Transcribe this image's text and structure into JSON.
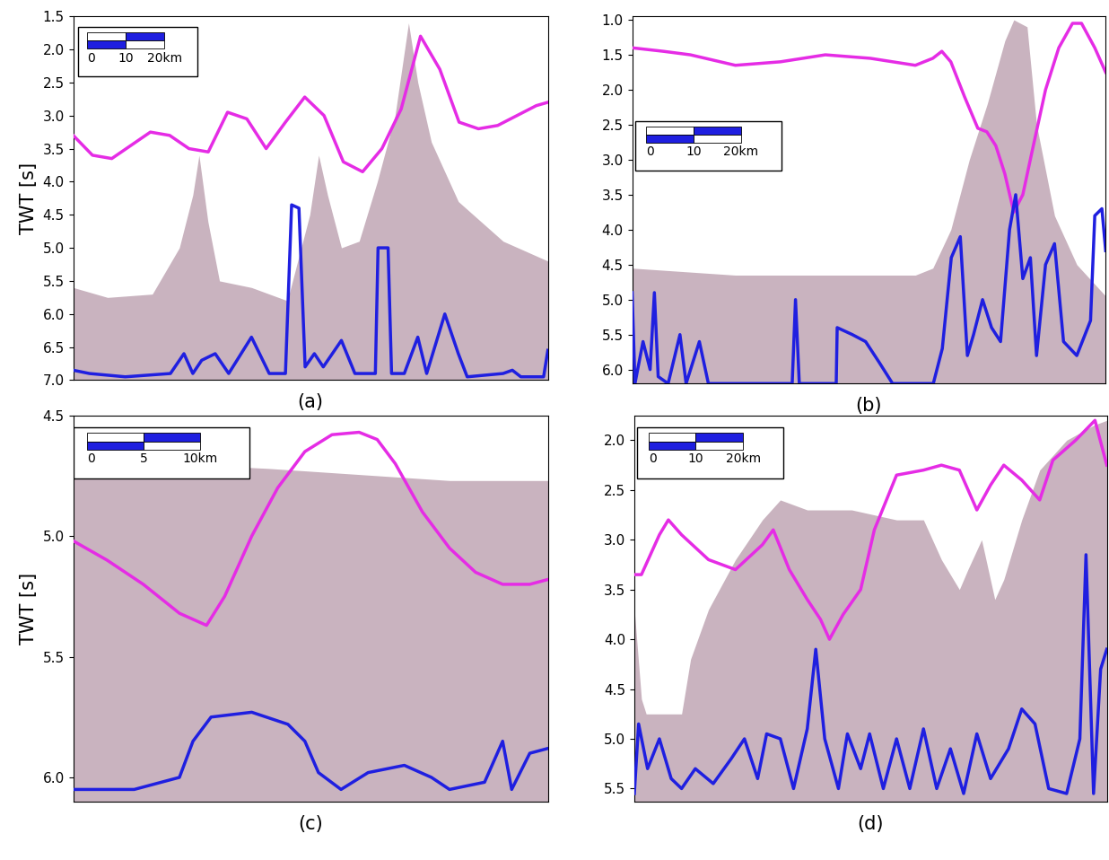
{
  "chart_data": [
    {
      "type": "line",
      "title": "(a)",
      "y_label": "TWT [s]",
      "xlim": [
        0,
        123
      ],
      "ylim": [
        7.0,
        1.5
      ],
      "yticks": [
        1.5,
        2.0,
        2.5,
        3.0,
        3.5,
        4.0,
        4.5,
        5.0,
        5.5,
        6.0,
        6.5,
        7.0
      ],
      "tick_labels": "y",
      "scale_bar": {
        "values": [
          0,
          10,
          20
        ],
        "labels": [
          "0",
          "10",
          "20km"
        ]
      },
      "series": [
        {
          "type": "area",
          "color": "#c9b3bf",
          "x": [
            0,
            8.9,
            20.5,
            27.5,
            31,
            32.6,
            34.9,
            37.9,
            46.2,
            55.5,
            61.3,
            63.6,
            65.9,
            69.5,
            74.1,
            78.8,
            83.4,
            86.9,
            89.3,
            92.8,
            99.8,
            111.4,
            123
          ],
          "values": [
            5.6,
            5.75,
            5.7,
            5.0,
            4.2,
            3.6,
            4.6,
            5.5,
            5.6,
            5.8,
            4.5,
            3.6,
            4.2,
            5.0,
            4.9,
            4.0,
            3.0,
            1.6,
            2.5,
            3.4,
            4.3,
            4.9,
            5.2
          ]
        },
        {
          "type": "line",
          "color": "#e52ce5",
          "x": [
            0,
            5,
            10,
            15,
            20,
            25,
            30,
            35,
            40,
            45,
            50,
            55,
            60,
            65,
            70,
            75,
            80,
            85,
            90,
            95,
            100,
            105,
            110,
            115,
            120,
            123
          ],
          "values": [
            3.3,
            3.6,
            3.65,
            3.45,
            3.25,
            3.3,
            3.5,
            3.55,
            2.95,
            3.05,
            3.5,
            3.1,
            2.72,
            3.0,
            3.7,
            3.85,
            3.5,
            2.9,
            1.8,
            2.3,
            3.1,
            3.2,
            3.15,
            3.0,
            2.85,
            2.8
          ]
        },
        {
          "type": "line",
          "color": "#1f1fe0",
          "x": [
            0,
            4.2,
            13.5,
            25.2,
            28.7,
            31,
            33.3,
            36.8,
            40.3,
            46.2,
            50.8,
            55,
            56.6,
            58.5,
            60.1,
            62.5,
            64.8,
            69.5,
            73,
            78.3,
            79,
            81.6,
            82.5,
            85.8,
            89.3,
            91.6,
            96.3,
            99.8,
            102.1,
            111.4,
            113.8,
            116,
            121.9,
            123
          ],
          "values": [
            6.85,
            6.9,
            6.95,
            6.9,
            6.6,
            6.9,
            6.7,
            6.6,
            6.9,
            6.35,
            6.9,
            6.9,
            4.35,
            4.4,
            6.8,
            6.6,
            6.8,
            6.4,
            6.9,
            6.9,
            5.0,
            5.0,
            6.9,
            6.9,
            6.35,
            6.9,
            6.0,
            6.6,
            6.95,
            6.9,
            6.85,
            6.95,
            6.95,
            6.55
          ]
        }
      ]
    },
    {
      "type": "line",
      "title": "(b)",
      "xlim": [
        0,
        100
      ],
      "ylim": [
        6.2,
        0.95
      ],
      "yticks": [
        1.0,
        1.5,
        2.0,
        2.5,
        3.0,
        3.5,
        4.0,
        4.5,
        5.0,
        5.5,
        6.0
      ],
      "tick_labels": "y",
      "scale_bar": {
        "values": [
          0,
          10,
          20
        ],
        "labels": [
          "0",
          "10",
          "20km"
        ]
      },
      "series": [
        {
          "type": "area",
          "color": "#c9b3bf",
          "x": [
            0,
            21.8,
            40.8,
            59.8,
            63.5,
            67.3,
            71.2,
            75,
            78.7,
            80.6,
            83.4,
            85.4,
            89.2,
            93.9,
            100
          ],
          "values": [
            4.55,
            4.65,
            4.65,
            4.65,
            4.55,
            4.0,
            3.0,
            2.2,
            1.3,
            1.0,
            1.1,
            2.5,
            3.8,
            4.5,
            4.95
          ]
        },
        {
          "type": "line",
          "color": "#e52ce5",
          "x": [
            0,
            6.6,
            12.3,
            21.8,
            31.3,
            40.8,
            50.3,
            59.8,
            63.5,
            65.4,
            67.3,
            70.2,
            73,
            74.9,
            76.8,
            78.7,
            80.6,
            82.5,
            84.4,
            87.3,
            90.1,
            93,
            94.9,
            97.7,
            100
          ],
          "values": [
            1.4,
            1.45,
            1.5,
            1.65,
            1.6,
            1.5,
            1.55,
            1.65,
            1.55,
            1.45,
            1.6,
            2.1,
            2.55,
            2.6,
            2.8,
            3.2,
            3.75,
            3.5,
            2.9,
            2.0,
            1.4,
            1.05,
            1.05,
            1.4,
            1.75
          ]
        },
        {
          "type": "line",
          "color": "#1f1fe0",
          "x": [
            0,
            0.6,
            2.3,
            3.8,
            4.7,
            5.5,
            7.6,
            10.1,
            11.4,
            14.2,
            16.1,
            27.5,
            33.8,
            34.5,
            35.3,
            43.1,
            43.3,
            46.5,
            49.3,
            52.2,
            55,
            63.6,
            65.5,
            67.4,
            69.3,
            70.8,
            72.1,
            74,
            75.9,
            77.8,
            79.7,
            81,
            82.5,
            84.1,
            85.4,
            87.3,
            89.2,
            91.1,
            93.9,
            96.8,
            97.7,
            99.2,
            100
          ],
          "values": [
            4.9,
            6.2,
            5.6,
            6.0,
            4.9,
            6.1,
            6.2,
            5.5,
            6.2,
            5.6,
            6.2,
            6.2,
            6.2,
            5.0,
            6.2,
            6.2,
            5.4,
            5.5,
            5.6,
            5.9,
            6.2,
            6.2,
            5.7,
            4.4,
            4.1,
            5.8,
            5.5,
            5.0,
            5.4,
            5.6,
            4.0,
            3.5,
            4.7,
            4.4,
            5.8,
            4.5,
            4.2,
            5.6,
            5.8,
            5.3,
            3.8,
            3.7,
            4.3
          ]
        }
      ]
    },
    {
      "type": "line",
      "title": "(c)",
      "y_label": "TWT [s]",
      "xlim": [
        0,
        42
      ],
      "ylim": [
        6.1,
        4.5
      ],
      "yticks": [
        4.5,
        5.0,
        5.5,
        6.0
      ],
      "tick_labels": "y",
      "scale_bar": {
        "values": [
          0,
          5,
          10
        ],
        "labels": [
          "0",
          "5",
          "10km"
        ]
      },
      "series": [
        {
          "type": "area",
          "color": "#c9b3bf",
          "x": [
            0,
            17.3,
            33.3,
            42
          ],
          "values": [
            4.68,
            4.72,
            4.77,
            4.77
          ]
        },
        {
          "type": "line",
          "color": "#e52ce5",
          "x": [
            0,
            3,
            6.2,
            9.4,
            11.8,
            13.4,
            15.8,
            18.1,
            20.5,
            22.9,
            25.3,
            26.9,
            28.5,
            30.9,
            33.3,
            35.6,
            38,
            40.4,
            42
          ],
          "values": [
            5.02,
            5.1,
            5.2,
            5.32,
            5.37,
            5.25,
            5.0,
            4.8,
            4.65,
            4.58,
            4.57,
            4.6,
            4.7,
            4.9,
            5.05,
            5.15,
            5.2,
            5.2,
            5.18
          ]
        },
        {
          "type": "line",
          "color": "#1f1fe0",
          "x": [
            0,
            5.4,
            9.4,
            10.6,
            12.2,
            15.8,
            19,
            20.5,
            21.7,
            23.7,
            26.1,
            29.3,
            31.7,
            33.3,
            36.4,
            38,
            38.8,
            40.4,
            42
          ],
          "values": [
            6.05,
            6.05,
            6.0,
            5.85,
            5.75,
            5.73,
            5.78,
            5.85,
            5.98,
            6.05,
            5.98,
            5.95,
            6.0,
            6.05,
            6.02,
            5.85,
            6.05,
            5.9,
            5.88
          ]
        }
      ]
    },
    {
      "type": "line",
      "title": "(d)",
      "xlim": [
        0,
        100
      ],
      "ylim": [
        5.63,
        1.75
      ],
      "yticks": [
        2.0,
        2.5,
        3.0,
        3.5,
        4.0,
        4.5,
        5.0,
        5.5
      ],
      "tick_labels": "y",
      "scale_bar": {
        "values": [
          0,
          10,
          20
        ],
        "labels": [
          "0",
          "10",
          "20km"
        ]
      },
      "series": [
        {
          "type": "area",
          "color": "#c9b3bf",
          "x": [
            0,
            1.5,
            2.5,
            10,
            11.9,
            15.7,
            21.4,
            27.1,
            30.9,
            36.6,
            46,
            55.5,
            61.2,
            65,
            68.8,
            70.6,
            73.5,
            76.3,
            78.2,
            82,
            85.8,
            91.5,
            97.2,
            100
          ],
          "values": [
            3.7,
            4.6,
            4.75,
            4.75,
            4.2,
            3.7,
            3.2,
            2.8,
            2.6,
            2.7,
            2.7,
            2.8,
            2.8,
            3.2,
            3.5,
            3.3,
            3.0,
            3.6,
            3.4,
            2.8,
            2.3,
            2.0,
            1.85,
            1.8
          ]
        },
        {
          "type": "line",
          "color": "#e52ce5",
          "x": [
            0,
            1.5,
            5.3,
            7.2,
            10,
            15.7,
            21.4,
            27.1,
            29.4,
            32.8,
            36.6,
            39.4,
            41.3,
            44.2,
            47.9,
            50.8,
            55.5,
            61.2,
            65,
            68.8,
            72.5,
            75.4,
            78.2,
            82,
            85.8,
            88.6,
            93.4,
            97.5,
            100
          ],
          "values": [
            3.35,
            3.35,
            2.95,
            2.8,
            2.95,
            3.2,
            3.3,
            3.05,
            2.9,
            3.3,
            3.6,
            3.8,
            4.0,
            3.75,
            3.5,
            2.9,
            2.35,
            2.3,
            2.25,
            2.3,
            2.7,
            2.45,
            2.25,
            2.4,
            2.6,
            2.2,
            2.0,
            1.8,
            2.25
          ]
        },
        {
          "type": "line",
          "color": "#1f1fe0",
          "x": [
            0,
            0.9,
            2.8,
            5.3,
            7.8,
            10,
            12.9,
            16.7,
            20.5,
            23.3,
            26.1,
            28,
            30.9,
            33.7,
            36.6,
            38.4,
            40.3,
            43.2,
            45.1,
            47.9,
            49.8,
            52.7,
            55.5,
            58.3,
            61.2,
            64,
            66.9,
            69.7,
            72.5,
            75.4,
            79.2,
            82,
            84.8,
            87.7,
            91.5,
            94.3,
            95.6,
            97.2,
            98.7,
            100
          ],
          "values": [
            5.55,
            4.85,
            5.3,
            5.0,
            5.4,
            5.5,
            5.3,
            5.45,
            5.2,
            5.0,
            5.4,
            4.95,
            5.0,
            5.5,
            4.9,
            4.1,
            5.0,
            5.5,
            4.95,
            5.3,
            4.95,
            5.5,
            5.0,
            5.5,
            4.9,
            5.5,
            5.1,
            5.55,
            4.95,
            5.4,
            5.1,
            4.7,
            4.85,
            5.5,
            5.55,
            5.0,
            3.15,
            5.55,
            4.3,
            4.1
          ]
        }
      ]
    }
  ]
}
